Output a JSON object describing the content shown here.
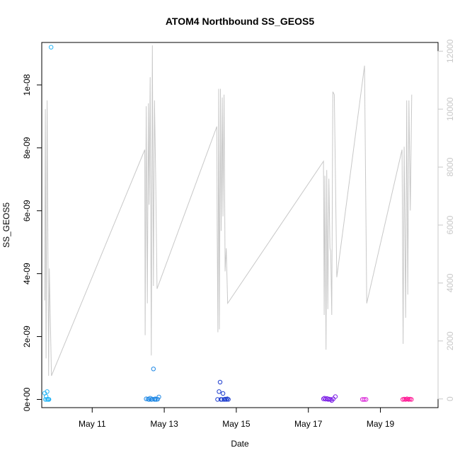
{
  "chart_data": {
    "type": "scatter",
    "title": "ATOM4 Northbound SS_GEOS5",
    "xlabel": "Date",
    "ylabel": "SS_GEOS5",
    "x_unit": "days, May 2016",
    "xlim": [
      9.6,
      20.6
    ],
    "ylim": [
      -2.6e-10,
      1.135e-08
    ],
    "y2lim": [
      -300,
      12300
    ],
    "x_ticks": [
      11,
      13,
      15,
      17,
      19
    ],
    "x_tick_labels": [
      "May 11",
      "May 13",
      "May 15",
      "May 17",
      "May 19"
    ],
    "y_ticks": [
      0,
      2e-09,
      4e-09,
      6e-09,
      8e-09,
      1e-08
    ],
    "y_tick_labels": [
      "0e+00",
      "2e-09",
      "4e-09",
      "6e-09",
      "8e-09",
      "1e-08"
    ],
    "y2_ticks": [
      0,
      2000,
      4000,
      6000,
      8000,
      10000,
      12000
    ],
    "y2_tick_labels": [
      "0",
      "2000",
      "4000",
      "6000",
      "8000",
      "10000",
      "12000"
    ],
    "grid": false,
    "legend": "none",
    "point_colors": [
      "#29b6f6",
      "#1e88e5",
      "#1e3ecf",
      "#7a1ce6",
      "#a020f0",
      "#d81bd6",
      "#ff1493"
    ],
    "line_color": "#c8c8c8",
    "series": [
      {
        "kind": "points",
        "color_group": 0,
        "x": [
          9.68,
          9.7,
          9.72,
          9.74,
          9.75,
          9.77,
          9.78,
          9.79,
          9.8,
          9.86
        ],
        "y": [
          2e-10,
          0,
          1e-10,
          0,
          2.5e-10,
          1e-11,
          0,
          0,
          0,
          1.12e-08
        ]
      },
      {
        "kind": "points",
        "color_group": 1,
        "x": [
          12.5,
          12.55,
          12.58,
          12.61,
          12.64,
          12.67,
          12.7,
          12.73,
          12.75,
          12.78,
          12.82,
          12.85
        ],
        "y": [
          2e-11,
          1e-11,
          0,
          4e-11,
          0,
          1e-11,
          9.7e-10,
          0,
          2e-11,
          0,
          1e-11,
          8e-11
        ]
      },
      {
        "kind": "points",
        "color_group": 2,
        "x": [
          14.48,
          14.52,
          14.55,
          14.57,
          14.6,
          14.63,
          14.66,
          14.69,
          14.72,
          14.75,
          14.78
        ],
        "y": [
          0,
          2.5e-10,
          5.5e-10,
          0,
          0,
          1.9e-10,
          0,
          1e-11,
          0,
          2e-11,
          0
        ]
      },
      {
        "kind": "points",
        "color_group": 3,
        "x": [
          17.42,
          17.45,
          17.48,
          17.52,
          17.55,
          17.58,
          17.62,
          17.65,
          17.69,
          17.75
        ],
        "y": [
          2e-11,
          4e-11,
          1e-11,
          3e-11,
          0,
          1e-11,
          0,
          -3e-11,
          2e-11,
          9e-11
        ]
      },
      {
        "kind": "points",
        "color_group": 5,
        "x": [
          18.5,
          18.55,
          18.6
        ],
        "y": [
          0,
          0,
          0
        ]
      },
      {
        "kind": "points",
        "color_group": 6,
        "x": [
          19.62,
          19.66,
          19.7,
          19.74,
          19.78,
          19.82,
          19.86
        ],
        "y": [
          0,
          1e-11,
          0,
          2e-11,
          0,
          1e-11,
          0
        ]
      },
      {
        "kind": "line",
        "axis": "right",
        "x": [
          9.68,
          9.7,
          9.72,
          9.75,
          9.79,
          9.81,
          9.87,
          12.46,
          12.47,
          12.5,
          12.53,
          12.56,
          12.58,
          12.61,
          12.64,
          12.67,
          12.7,
          12.73,
          12.76,
          12.8,
          14.46,
          14.47,
          14.49,
          14.51,
          14.53,
          14.56,
          14.58,
          14.61,
          14.63,
          14.66,
          14.69,
          14.72,
          14.76,
          17.42,
          17.44,
          17.46,
          17.49,
          17.51,
          17.54,
          17.57,
          17.6,
          17.62,
          17.65,
          17.68,
          17.72,
          17.79,
          18.56,
          18.62,
          19.6,
          19.63,
          19.66,
          19.7,
          19.73,
          19.76,
          19.79,
          19.83,
          19.87
        ],
        "y": [
          3400,
          10000,
          1400,
          10300,
          800,
          4500,
          800,
          8600,
          2200,
          10100,
          3300,
          10200,
          6700,
          11100,
          1500,
          12200,
          3900,
          10300,
          7800,
          3800,
          9400,
          5800,
          2300,
          10700,
          2400,
          10700,
          5800,
          10400,
          6300,
          10500,
          4400,
          5200,
          3300,
          8200,
          2900,
          7700,
          1700,
          7900,
          3100,
          7600,
          5200,
          5100,
          2900,
          10600,
          10500,
          4200,
          11500,
          3300,
          8600,
          1900,
          8700,
          2800,
          10300,
          3600,
          10300,
          6500,
          10500
        ]
      }
    ]
  }
}
